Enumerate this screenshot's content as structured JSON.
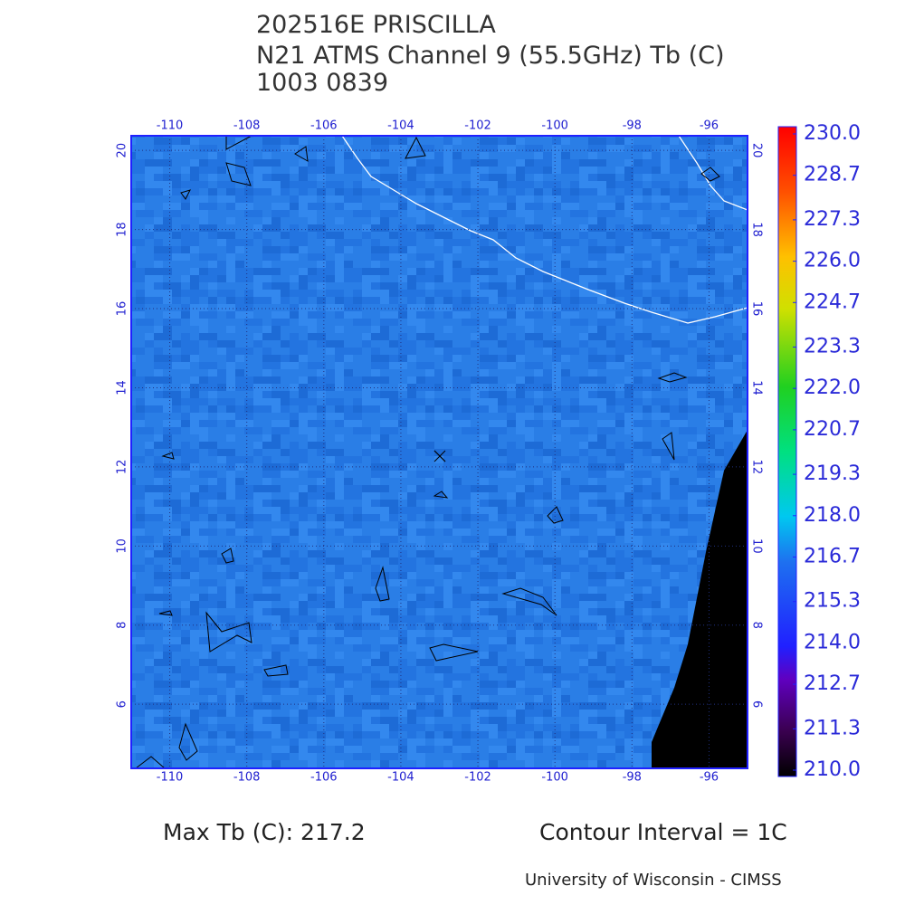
{
  "header": {
    "lines": [
      "202516E PRISCILLA",
      "N21 ATMS Channel 9 (55.5GHz) Tb (C)",
      "1003 0839"
    ]
  },
  "map": {
    "lonlim": [
      -111.0,
      -95.0
    ],
    "latlim": [
      4.38,
      20.37
    ],
    "lon_ticks": [
      -110,
      -108,
      -106,
      -104,
      -102,
      -100,
      -98,
      -96
    ],
    "lat_ticks": [
      6,
      8,
      10,
      12,
      14,
      16,
      18,
      20
    ]
  },
  "colorbar": {
    "lim": [
      210,
      230
    ],
    "ticks": [
      {
        "value": 230,
        "label": "230.0"
      },
      {
        "value": 228.7,
        "label": "228.7"
      },
      {
        "value": 227.3,
        "label": "227.3"
      },
      {
        "value": 226,
        "label": "226.0"
      },
      {
        "value": 224.7,
        "label": "224.7"
      },
      {
        "value": 223.3,
        "label": "223.3"
      },
      {
        "value": 222,
        "label": "222.0"
      },
      {
        "value": 220.7,
        "label": "220.7"
      },
      {
        "value": 219.3,
        "label": "219.3"
      },
      {
        "value": 218,
        "label": "218.0"
      },
      {
        "value": 216.7,
        "label": "216.7"
      },
      {
        "value": 215.3,
        "label": "215.3"
      },
      {
        "value": 214,
        "label": "214.0"
      },
      {
        "value": 212.7,
        "label": "212.7"
      },
      {
        "value": 211.3,
        "label": "211.3"
      },
      {
        "value": 210,
        "label": "210.0"
      }
    ]
  },
  "footer": {
    "max_tb": "Max Tb (C): 217.2",
    "contour": "Contour Interval = 1C",
    "credit": "University of Wisconsin - CIMSS"
  }
}
